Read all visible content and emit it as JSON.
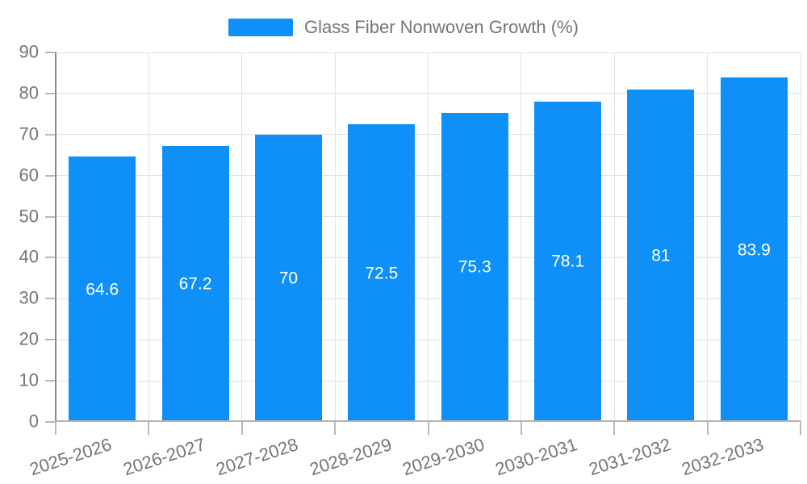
{
  "chart_data": {
    "type": "bar",
    "title": "",
    "legend": "Glass Fiber Nonwoven Growth (%)",
    "legend_position": "top",
    "categories": [
      "2025-2026",
      "2026-2027",
      "2027-2028",
      "2028-2029",
      "2029-2030",
      "2030-2031",
      "2031-2032",
      "2032-2033"
    ],
    "series": [
      {
        "name": "Glass Fiber Nonwoven Growth (%)",
        "values": [
          64.6,
          67.2,
          70,
          72.5,
          75.3,
          78.1,
          81,
          83.9
        ]
      }
    ],
    "bar_labels": [
      "64.6",
      "67.2",
      "70",
      "72.5",
      "75.3",
      "78.1",
      "81",
      "83.9"
    ],
    "xlabel": "",
    "ylabel": "",
    "ylim": [
      0,
      90
    ],
    "yticks": [
      0,
      10,
      20,
      30,
      40,
      50,
      60,
      70,
      80,
      90
    ],
    "grid": true,
    "x_label_rotation_deg": -18,
    "colors": {
      "bar": "#0e90f8",
      "grid": "#e2e2e2",
      "axis_left": "#8a8a8a",
      "axis_bottom": "#b3b3b3",
      "tick": "#b9b9b9",
      "text": "#757575",
      "bar_label": "#ffffff",
      "background": "#ffffff"
    }
  }
}
